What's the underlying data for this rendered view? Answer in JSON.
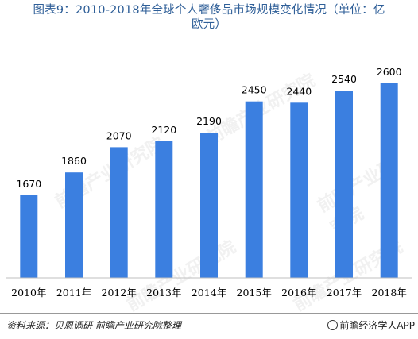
{
  "title": {
    "line1": "图表9：2010-2018年全球个人奢侈品市场规模变化情况（单位：亿",
    "line2": "欧元）"
  },
  "source": "资料来源：贝恩调研 前瞻产业研究院整理",
  "brand": "前瞻经济学人APP",
  "watermark": "前瞻产业研究院",
  "colors": {
    "bar": "#3b7fe0",
    "title": "#2f5f98"
  },
  "chart_data": {
    "type": "bar",
    "title": "图表9：2010-2018年全球个人奢侈品市场规模变化情况（单位：亿欧元）",
    "categories": [
      "2010年",
      "2011年",
      "2012年",
      "2013年",
      "2014年",
      "2015年",
      "2016年",
      "2017年",
      "2018年"
    ],
    "values": [
      1670,
      1860,
      2070,
      2120,
      2190,
      2450,
      2440,
      2540,
      2600
    ],
    "data_labels": [
      "1670",
      "1860",
      "2070",
      "2120",
      "2190",
      "2450",
      "2440",
      "2540",
      "2600"
    ],
    "xlabel": "",
    "ylabel": "",
    "ylim": [
      0,
      2600
    ],
    "grid": false,
    "legend": "none"
  }
}
